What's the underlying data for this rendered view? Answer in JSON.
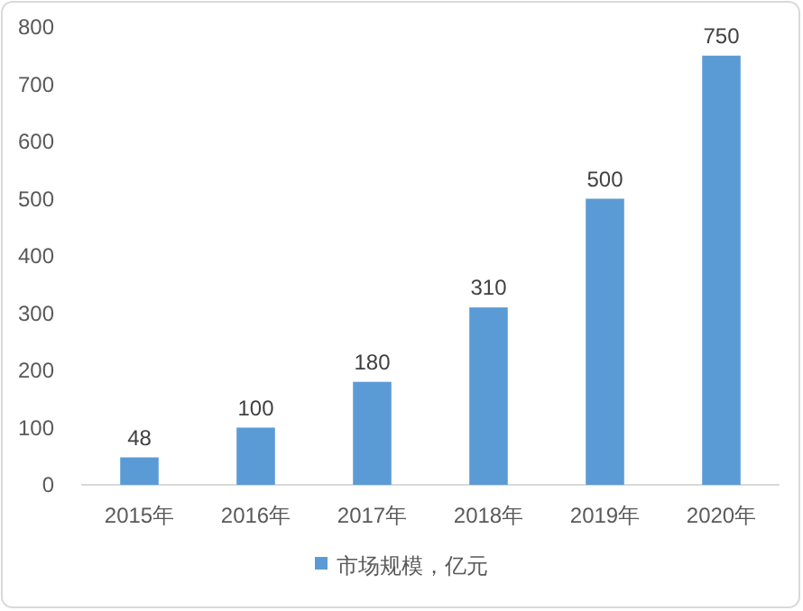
{
  "chart_data": {
    "type": "bar",
    "categories": [
      "2015年",
      "2016年",
      "2017年",
      "2018年",
      "2019年",
      "2020年"
    ],
    "series": [
      {
        "name": "市场规模，亿元",
        "color": "#5b9bd5",
        "values": [
          48,
          100,
          180,
          310,
          500,
          750
        ]
      }
    ],
    "ylim": [
      0,
      800
    ],
    "yticks": [
      0,
      100,
      200,
      300,
      400,
      500,
      600,
      700,
      800
    ],
    "data_labels": true,
    "legend": "bottom",
    "grid": false
  }
}
